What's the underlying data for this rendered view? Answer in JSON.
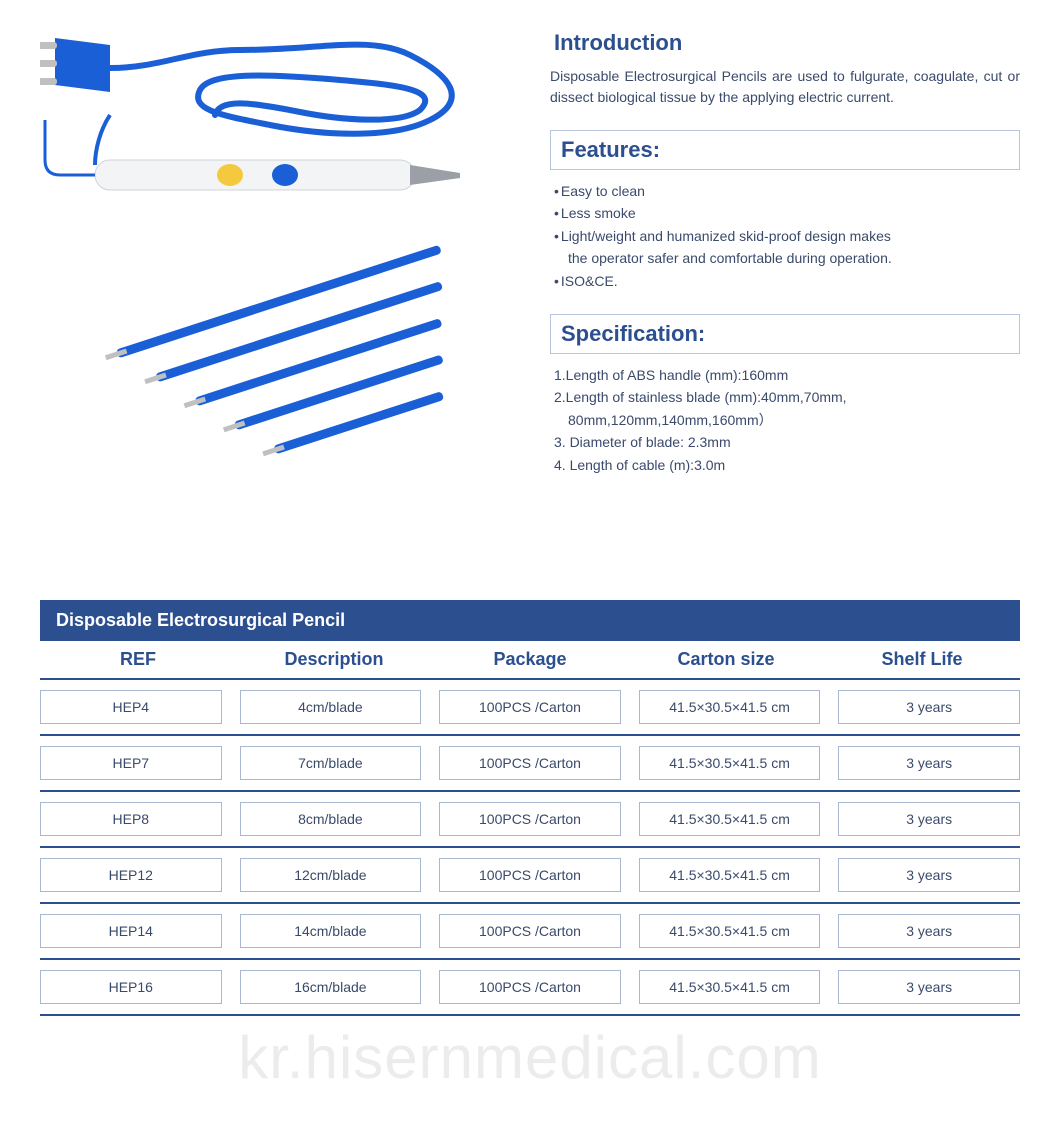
{
  "colors": {
    "brand_blue": "#2c4f90",
    "text_dark": "#3a4a6b",
    "cell_border": "#a8b8d0",
    "title_box_border": "#b8c5dc",
    "background": "#ffffff",
    "cable_blue": "#1a5fd6",
    "pencil_body": "#f2f4f6",
    "button_yellow": "#f5c93d",
    "button_blue": "#1a5fd6",
    "watermark": "rgba(180,180,180,0.25)"
  },
  "typography": {
    "title_fontsize_pt": 17,
    "body_fontsize_pt": 11,
    "table_header_fontsize_pt": 14,
    "table_cell_fontsize_pt": 11,
    "watermark_fontsize_pt": 45
  },
  "introduction": {
    "title": "Introduction",
    "text": "Disposable Electrosurgical Pencils are used to fulgurate, coagulate, cut or dissect biological tissue by the applying electric current."
  },
  "features": {
    "title": "Features:",
    "items": [
      "Easy to clean",
      "Less smoke",
      "Light/weight and humanized skid-proof design makes",
      "the operator safer and comfortable during operation.",
      "ISO&CE."
    ],
    "indent_flags": [
      false,
      false,
      false,
      true,
      false
    ]
  },
  "specification": {
    "title": "Specification:",
    "items": [
      "1.Length of ABS handle (mm):160mm",
      "2.Length of stainless blade (mm):40mm,70mm,",
      "80mm,120mm,140mm,160mm）",
      "3. Diameter of blade: 2.3mm",
      "4. Length of cable (m):3.0m"
    ],
    "indent_flags": [
      false,
      false,
      true,
      false,
      false
    ]
  },
  "product_illustration": {
    "type": "infographic",
    "description": "coiled blue cable with 3-pin plug connected to white electrosurgical pencil with yellow and blue buttons",
    "cable_color": "#1a5fd6",
    "plug_pin_color": "#c0c0c0",
    "pencil_body_color": "#f2f4f6",
    "button_colors": [
      "#f5c93d",
      "#1a5fd6"
    ]
  },
  "electrodes_illustration": {
    "type": "infographic",
    "description": "five blue electrode blades of decreasing length arranged diagonally with metallic tips",
    "count": 5,
    "shaft_color": "#1a5fd6",
    "tip_color": "#c0c0c0",
    "relative_lengths": [
      1.0,
      0.88,
      0.76,
      0.64,
      0.52
    ]
  },
  "table": {
    "title": "Disposable Electrosurgical Pencil",
    "columns": [
      "REF",
      "Description",
      "Package",
      "Carton  size",
      "Shelf Life"
    ],
    "column_alignment": [
      "center",
      "center",
      "center",
      "center",
      "center"
    ],
    "rows": [
      [
        "HEP4",
        "4cm/blade",
        "100PCS /Carton",
        "41.5×30.5×41.5 cm",
        "3 years"
      ],
      [
        "HEP7",
        "7cm/blade",
        "100PCS /Carton",
        "41.5×30.5×41.5 cm",
        "3 years"
      ],
      [
        "HEP8",
        "8cm/blade",
        "100PCS /Carton",
        "41.5×30.5×41.5 cm",
        "3 years"
      ],
      [
        "HEP12",
        "12cm/blade",
        "100PCS /Carton",
        "41.5×30.5×41.5 cm",
        "3 years"
      ],
      [
        "HEP14",
        "14cm/blade",
        "100PCS /Carton",
        "41.5×30.5×41.5 cm",
        "3 years"
      ],
      [
        "HEP16",
        "16cm/blade",
        "100PCS /Carton",
        "41.5×30.5×41.5 cm",
        "3 years"
      ]
    ],
    "header_bg": "#2c4f90",
    "header_fg": "#ffffff",
    "row_divider_color": "#2c4f90",
    "cell_border_color": "#a8b8d0"
  },
  "watermark": {
    "text": "kr.hisernmedical.com"
  }
}
